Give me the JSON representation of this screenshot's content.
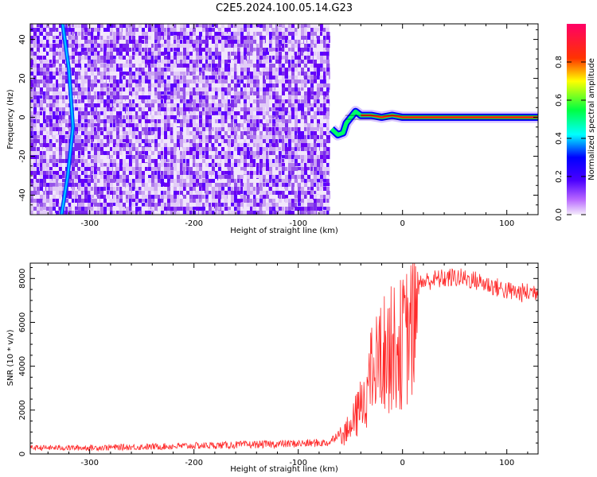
{
  "title": "C2E5.2024.100.05.14.G23",
  "chart_data": [
    {
      "type": "heatmap",
      "xlabel": "Height of straight line (km)",
      "ylabel": "Frequency (Hz)",
      "xlim": [
        -357,
        130
      ],
      "ylim": [
        -50,
        48
      ],
      "xticks": [
        -300,
        -200,
        -100,
        0,
        100
      ],
      "yticks": [
        -40,
        -20,
        0,
        20,
        40
      ],
      "noise_region_x": [
        -357,
        -70
      ],
      "signal_curve": [
        {
          "x": -68,
          "y": -6
        },
        {
          "x": -62,
          "y": -9
        },
        {
          "x": -57,
          "y": -8
        },
        {
          "x": -54,
          "y": -3
        },
        {
          "x": -48,
          "y": 1
        },
        {
          "x": -45,
          "y": 3
        },
        {
          "x": -40,
          "y": 1
        },
        {
          "x": -30,
          "y": 1
        },
        {
          "x": -20,
          "y": 0
        },
        {
          "x": -10,
          "y": 1
        },
        {
          "x": 0,
          "y": 0
        },
        {
          "x": 50,
          "y": 0
        },
        {
          "x": 100,
          "y": 0
        },
        {
          "x": 130,
          "y": 0
        }
      ],
      "streak": [
        {
          "x": -326,
          "y": 48
        },
        {
          "x": -320,
          "y": 25
        },
        {
          "x": -316,
          "y": -5
        },
        {
          "x": -321,
          "y": -30
        },
        {
          "x": -327,
          "y": -50
        }
      ],
      "colorbar": {
        "label": "Normalized spectral amplitude",
        "ticks": [
          0.0,
          0.2,
          0.4,
          0.6,
          0.8
        ],
        "colors": [
          "#f4ecfb",
          "#7a00ff",
          "#0000ff",
          "#00ffff",
          "#00ff00",
          "#ffff00",
          "#ff0000",
          "#ff0066"
        ]
      }
    },
    {
      "type": "line",
      "xlabel": "Height of straight line (km)",
      "ylabel": "SNR (10 * v/v)",
      "xlim": [
        -357,
        130
      ],
      "ylim": [
        0,
        8700
      ],
      "xticks": [
        -300,
        -200,
        -100,
        0,
        100
      ],
      "yticks": [
        0,
        2000,
        4000,
        6000,
        8000
      ],
      "color": "#ff2a2a",
      "series": [
        {
          "x": [
            -357,
            -300,
            -250,
            -200,
            -150,
            -100,
            -70,
            -50,
            -40,
            -30,
            -20,
            -10,
            0,
            10,
            20,
            30,
            40,
            50,
            60,
            70,
            80,
            90,
            100,
            110,
            120,
            130
          ],
          "values": [
            280,
            280,
            320,
            370,
            420,
            470,
            520,
            1500,
            2800,
            4600,
            5800,
            6200,
            6500,
            7500,
            7850,
            7950,
            8000,
            8050,
            8000,
            7900,
            7750,
            7600,
            7450,
            7350,
            7350,
            7450
          ]
        }
      ]
    }
  ]
}
